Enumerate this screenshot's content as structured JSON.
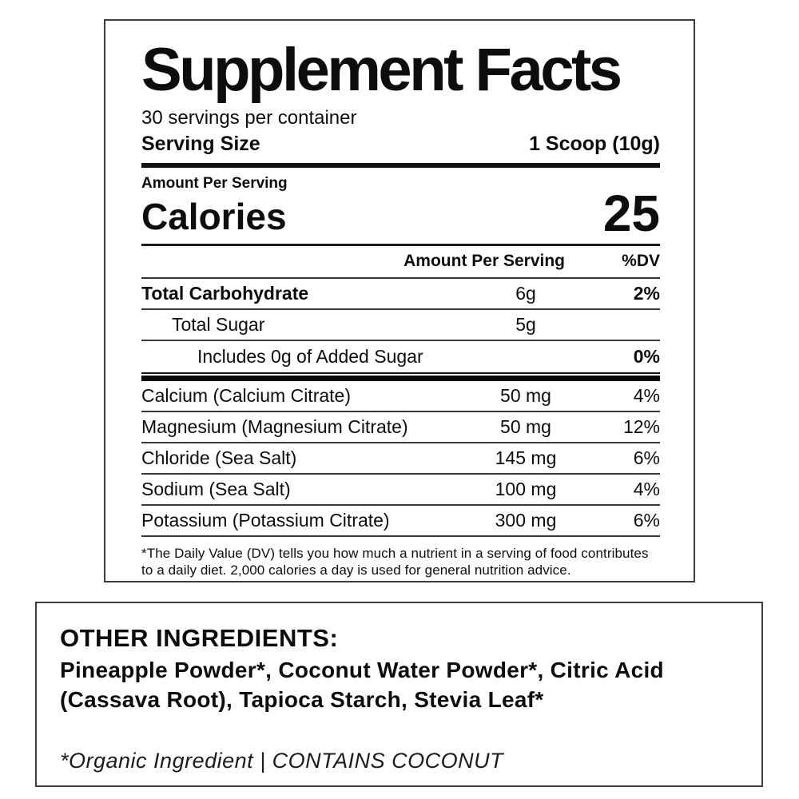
{
  "panel": {
    "title": "Supplement Facts",
    "servings_per_container": "30 servings per container",
    "serving_size_label": "Serving Size",
    "serving_size_value": "1 Scoop (10g)",
    "amount_per_serving_label": "Amount Per Serving",
    "calories_label": "Calories",
    "calories_value": "25",
    "columns": {
      "amount": "Amount Per Serving",
      "dv": "%DV"
    },
    "macro_rows": [
      {
        "name": "Total Carbohydrate",
        "amount": "6g",
        "dv": "2%"
      },
      {
        "name": "Total Sugar",
        "amount": "5g",
        "dv": ""
      },
      {
        "name": "Includes 0g of Added Sugar",
        "amount": "",
        "dv": "0%"
      }
    ],
    "mineral_rows": [
      {
        "name": "Calcium (Calcium Citrate)",
        "amount": "50 mg",
        "dv": "4%"
      },
      {
        "name": "Magnesium (Magnesium Citrate)",
        "amount": "50 mg",
        "dv": "12%"
      },
      {
        "name": "Chloride (Sea Salt)",
        "amount": "145 mg",
        "dv": "6%"
      },
      {
        "name": "Sodium (Sea Salt)",
        "amount": "100 mg",
        "dv": "4%"
      },
      {
        "name": "Potassium (Potassium Citrate)",
        "amount": "300 mg",
        "dv": "6%"
      }
    ],
    "footnote": "*The Daily Value (DV) tells you how much a nutrient in a serving of food contributes to a daily diet. 2,000 calories a day is used for general nutrition advice."
  },
  "other_ingredients": {
    "heading": "OTHER INGREDIENTS:",
    "body": "Pineapple Powder*, Coconut Water Powder*, Citric Acid (Cassava Root), Tapioca Starch, Stevia Leaf*",
    "note": "*Organic Ingredient | CONTAINS COCONUT"
  },
  "colors": {
    "background": "#ffffff",
    "text": "#0d0d0d",
    "border": "#3c3c3c",
    "rule": "#111111"
  }
}
